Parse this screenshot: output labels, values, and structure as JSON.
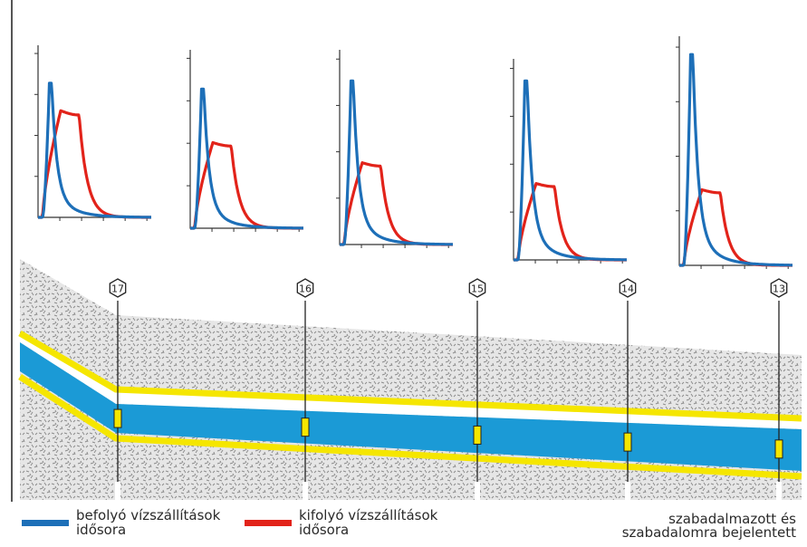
{
  "legend": {
    "inflow": {
      "label": "befolyó vízszállítások\nidősora",
      "color": "#1d6fb8"
    },
    "outflow": {
      "label": "kifolyó vízszállítások\nidősora",
      "color": "#e2231a"
    }
  },
  "note": "szabadalmazott és\nszabadalomra bejelentett",
  "colors": {
    "inflow": "#1d6fb8",
    "outflow": "#e2231a",
    "channel": "#1b9ad6",
    "levee": "#f5e600",
    "soil": "#d8d8d8"
  },
  "stations": [
    {
      "label": "17",
      "icon": "hexagon-marker-icon"
    },
    {
      "label": "16",
      "icon": "hexagon-marker-icon"
    },
    {
      "label": "15",
      "icon": "hexagon-marker-icon"
    },
    {
      "label": "14",
      "icon": "hexagon-marker-icon"
    },
    {
      "label": "13",
      "icon": "hexagon-marker-icon"
    }
  ],
  "hydrographs": [
    {
      "station": "17",
      "inflow_peak": 0.78,
      "outflow_peak": 0.62
    },
    {
      "station": "16",
      "inflow_peak": 0.78,
      "outflow_peak": 0.48
    },
    {
      "station": "15",
      "inflow_peak": 0.84,
      "outflow_peak": 0.42
    },
    {
      "station": "14",
      "inflow_peak": 0.89,
      "outflow_peak": 0.38
    },
    {
      "station": "13",
      "inflow_peak": 0.92,
      "outflow_peak": 0.33
    }
  ]
}
